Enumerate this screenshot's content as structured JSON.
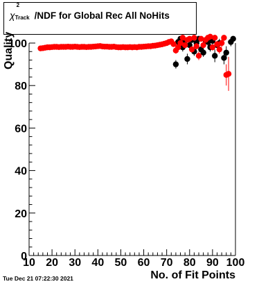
{
  "title": {
    "chi": "χ",
    "sup": "2",
    "sub": "Track",
    "rest": "/NDF for Global Rec All NoHits"
  },
  "timestamp": "Tue Dec 21 07:22:30 2021",
  "chart_data": {
    "type": "scatter",
    "xlabel": "No. of Fit Points",
    "ylabel": "Quality",
    "xlim": [
      10,
      100
    ],
    "ylim": [
      0,
      100
    ],
    "x_ticks": [
      "10",
      "20",
      "30",
      "40",
      "50",
      "60",
      "70",
      "80",
      "90",
      "100"
    ],
    "y_ticks": [
      "0",
      "20",
      "40",
      "60",
      "80",
      "100"
    ],
    "grid": false,
    "series": [
      {
        "color": "#000000",
        "points": [
          {
            "x": 74,
            "y": 90,
            "err": 2
          },
          {
            "x": 75,
            "y": 100.5,
            "err": 1.5
          },
          {
            "x": 76,
            "y": 102,
            "err": 1.5
          },
          {
            "x": 77,
            "y": 98,
            "err": 2
          },
          {
            "x": 78,
            "y": 101,
            "err": 1.5
          },
          {
            "x": 79,
            "y": 92.5,
            "err": 2.5
          },
          {
            "x": 80,
            "y": 99,
            "err": 2
          },
          {
            "x": 81,
            "y": 101.5,
            "err": 1.5
          },
          {
            "x": 82,
            "y": 96,
            "err": 2
          },
          {
            "x": 83,
            "y": 100,
            "err": 2
          },
          {
            "x": 84,
            "y": 102,
            "err": 1.5
          },
          {
            "x": 85,
            "y": 97,
            "err": 2
          },
          {
            "x": 86,
            "y": 95.5,
            "err": 2
          },
          {
            "x": 87,
            "y": 101,
            "err": 1.5
          },
          {
            "x": 88,
            "y": 100.5,
            "err": 2
          },
          {
            "x": 89,
            "y": 98,
            "err": 2
          },
          {
            "x": 90,
            "y": 101,
            "err": 2
          },
          {
            "x": 91,
            "y": 94,
            "err": 3
          },
          {
            "x": 92,
            "y": 99,
            "err": 2
          },
          {
            "x": 93,
            "y": 100,
            "err": 2
          },
          {
            "x": 95,
            "y": 93,
            "err": 3
          },
          {
            "x": 96,
            "y": 95.5,
            "err": 3
          },
          {
            "x": 98,
            "y": 100.5,
            "err": 2
          },
          {
            "x": 99,
            "y": 102,
            "err": 1.5
          }
        ]
      },
      {
        "color": "#ff0000",
        "points": [
          {
            "x": 15,
            "y": 97.5,
            "err": 0.6
          },
          {
            "x": 16,
            "y": 97.6,
            "err": 0.6
          },
          {
            "x": 17,
            "y": 97.8,
            "err": 0.6
          },
          {
            "x": 18,
            "y": 98,
            "err": 0.6
          },
          {
            "x": 19,
            "y": 98,
            "err": 0.6
          },
          {
            "x": 20,
            "y": 98.1,
            "err": 0.6
          },
          {
            "x": 21,
            "y": 98.2,
            "err": 0.6
          },
          {
            "x": 22,
            "y": 98.2,
            "err": 0.6
          },
          {
            "x": 23,
            "y": 98.1,
            "err": 0.6
          },
          {
            "x": 24,
            "y": 98.2,
            "err": 0.6
          },
          {
            "x": 25,
            "y": 98.2,
            "err": 0.6
          },
          {
            "x": 26,
            "y": 98.2,
            "err": 0.6
          },
          {
            "x": 27,
            "y": 98.3,
            "err": 0.6
          },
          {
            "x": 28,
            "y": 98.2,
            "err": 0.6
          },
          {
            "x": 29,
            "y": 98.2,
            "err": 0.6
          },
          {
            "x": 30,
            "y": 98.3,
            "err": 0.6
          },
          {
            "x": 31,
            "y": 98.2,
            "err": 0.6
          },
          {
            "x": 32,
            "y": 98.1,
            "err": 0.6
          },
          {
            "x": 33,
            "y": 98.2,
            "err": 0.6
          },
          {
            "x": 34,
            "y": 98.2,
            "err": 0.6
          },
          {
            "x": 35,
            "y": 98.1,
            "err": 0.6
          },
          {
            "x": 36,
            "y": 98.2,
            "err": 0.6
          },
          {
            "x": 37,
            "y": 98.2,
            "err": 0.6
          },
          {
            "x": 38,
            "y": 98.3,
            "err": 0.6
          },
          {
            "x": 39,
            "y": 98.4,
            "err": 0.6
          },
          {
            "x": 40,
            "y": 98.5,
            "err": 0.6
          },
          {
            "x": 41,
            "y": 98.6,
            "err": 0.6
          },
          {
            "x": 42,
            "y": 98.4,
            "err": 0.6
          },
          {
            "x": 43,
            "y": 98.3,
            "err": 0.6
          },
          {
            "x": 44,
            "y": 98.3,
            "err": 0.6
          },
          {
            "x": 45,
            "y": 98.2,
            "err": 0.6
          },
          {
            "x": 46,
            "y": 98.2,
            "err": 0.6
          },
          {
            "x": 47,
            "y": 98.3,
            "err": 0.6
          },
          {
            "x": 48,
            "y": 98.1,
            "err": 0.6
          },
          {
            "x": 49,
            "y": 98,
            "err": 0.6
          },
          {
            "x": 50,
            "y": 98,
            "err": 0.6
          },
          {
            "x": 51,
            "y": 98.1,
            "err": 0.6
          },
          {
            "x": 52,
            "y": 98,
            "err": 0.6
          },
          {
            "x": 53,
            "y": 98,
            "err": 0.6
          },
          {
            "x": 54,
            "y": 98.1,
            "err": 0.6
          },
          {
            "x": 55,
            "y": 98,
            "err": 0.6
          },
          {
            "x": 56,
            "y": 98.1,
            "err": 0.6
          },
          {
            "x": 57,
            "y": 98,
            "err": 0.6
          },
          {
            "x": 58,
            "y": 98.2,
            "err": 0.6
          },
          {
            "x": 59,
            "y": 98.2,
            "err": 0.6
          },
          {
            "x": 60,
            "y": 98.3,
            "err": 0.6
          },
          {
            "x": 61,
            "y": 98.4,
            "err": 0.6
          },
          {
            "x": 62,
            "y": 98.5,
            "err": 0.6
          },
          {
            "x": 63,
            "y": 98.5,
            "err": 0.6
          },
          {
            "x": 64,
            "y": 98.7,
            "err": 0.6
          },
          {
            "x": 65,
            "y": 98.8,
            "err": 0.6
          },
          {
            "x": 66,
            "y": 99,
            "err": 0.6
          },
          {
            "x": 67,
            "y": 99.2,
            "err": 0.6
          },
          {
            "x": 68,
            "y": 99.4,
            "err": 0.6
          },
          {
            "x": 69,
            "y": 99.7,
            "err": 0.6
          },
          {
            "x": 70,
            "y": 100,
            "err": 0.8
          },
          {
            "x": 71,
            "y": 100.5,
            "err": 0.8
          },
          {
            "x": 72,
            "y": 100.8,
            "err": 0.8
          },
          {
            "x": 73,
            "y": 99.5,
            "err": 1
          },
          {
            "x": 74,
            "y": 96.5,
            "err": 1.5
          },
          {
            "x": 75,
            "y": 98,
            "err": 1.2
          },
          {
            "x": 76,
            "y": 100,
            "err": 1.2
          },
          {
            "x": 77,
            "y": 102.5,
            "err": 1.2
          },
          {
            "x": 78,
            "y": 99,
            "err": 1.2
          },
          {
            "x": 79,
            "y": 101.5,
            "err": 1.2
          },
          {
            "x": 80,
            "y": 102,
            "err": 1.2
          },
          {
            "x": 81,
            "y": 97,
            "err": 1.5
          },
          {
            "x": 82,
            "y": 102.5,
            "err": 1.2
          },
          {
            "x": 83,
            "y": 98.5,
            "err": 1.5
          },
          {
            "x": 84,
            "y": 94,
            "err": 2
          },
          {
            "x": 85,
            "y": 102,
            "err": 1.2
          },
          {
            "x": 86,
            "y": 99,
            "err": 1.5
          },
          {
            "x": 87,
            "y": 101.5,
            "err": 1.2
          },
          {
            "x": 88,
            "y": 102.5,
            "err": 1.2
          },
          {
            "x": 89,
            "y": 103,
            "err": 1.2
          },
          {
            "x": 90,
            "y": 98,
            "err": 1.5
          },
          {
            "x": 91,
            "y": 102.5,
            "err": 1.2
          },
          {
            "x": 92,
            "y": 99.5,
            "err": 1.5
          },
          {
            "x": 93,
            "y": 97,
            "err": 2
          },
          {
            "x": 94,
            "y": 100,
            "err": 2
          },
          {
            "x": 95,
            "y": 102.5,
            "err": 1.5
          },
          {
            "x": 96,
            "y": 85,
            "err": 5
          },
          {
            "x": 97,
            "y": 85.5,
            "err": 8
          }
        ]
      }
    ]
  }
}
